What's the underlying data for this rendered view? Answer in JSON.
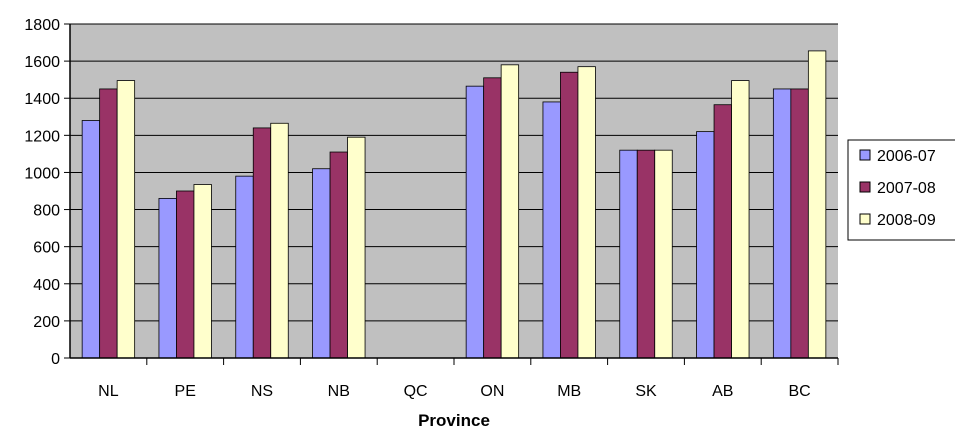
{
  "chart_data": {
    "type": "bar",
    "xlabel": "Province",
    "ylabel": "",
    "ylim": [
      0,
      1800
    ],
    "yticks": [
      0,
      200,
      400,
      600,
      800,
      1000,
      1200,
      1400,
      1600,
      1800
    ],
    "grid": true,
    "legend_position": "right",
    "plot_background": "#c0c0c0",
    "categories": [
      "NL",
      "PE",
      "NS",
      "NB",
      "QC",
      "ON",
      "MB",
      "SK",
      "AB",
      "BC"
    ],
    "series": [
      {
        "name": "2006-07",
        "color": "#9999ff",
        "values": [
          1280,
          860,
          980,
          1020,
          null,
          1465,
          1380,
          1120,
          1220,
          1450
        ]
      },
      {
        "name": "2007-08",
        "color": "#993366",
        "values": [
          1450,
          900,
          1240,
          1110,
          null,
          1510,
          1540,
          1120,
          1365,
          1450
        ]
      },
      {
        "name": "2008-09",
        "color": "#ffffcc",
        "values": [
          1495,
          935,
          1265,
          1190,
          null,
          1580,
          1570,
          1120,
          1495,
          1655
        ]
      }
    ]
  }
}
